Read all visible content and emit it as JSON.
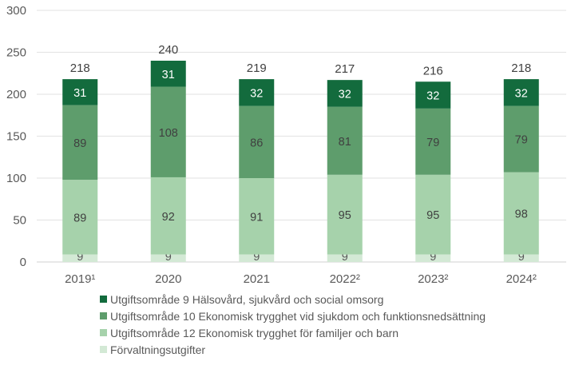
{
  "chart_data": {
    "type": "bar",
    "stacked": true,
    "title": "",
    "xlabel": "",
    "ylabel": "",
    "ylim": [
      0,
      300
    ],
    "yticks": [
      0,
      50,
      100,
      150,
      200,
      250,
      300
    ],
    "grid": true,
    "legend_position": "bottom",
    "categories": [
      "2019¹",
      "2020",
      "2021",
      "2022²",
      "2023²",
      "2024²"
    ],
    "series": [
      {
        "name": "Förvaltningsutgifter",
        "color": "#d3e9d5",
        "label_color": "#595959",
        "values": [
          9,
          9,
          9,
          9,
          9,
          9
        ]
      },
      {
        "name": "Utgiftsområde 12 Ekonomisk trygghet för familjer och barn",
        "color": "#a6d2ab",
        "label_color": "#404040",
        "values": [
          89,
          92,
          91,
          95,
          95,
          98
        ]
      },
      {
        "name": "Utgiftsområde 10 Ekonomisk trygghet vid sjukdom och funktionsnedsättning",
        "color": "#5e9d6c",
        "label_color": "#404040",
        "values": [
          89,
          108,
          86,
          81,
          79,
          79
        ]
      },
      {
        "name": "Utgiftsområde 9 Hälsovård, sjukvård och social omsorg",
        "color": "#136b3d",
        "label_color": "#ffffff",
        "values": [
          31,
          31,
          32,
          32,
          32,
          32
        ]
      }
    ],
    "totals": [
      218,
      240,
      219,
      217,
      216,
      218
    ],
    "legend_order": [
      3,
      2,
      1,
      0
    ]
  }
}
